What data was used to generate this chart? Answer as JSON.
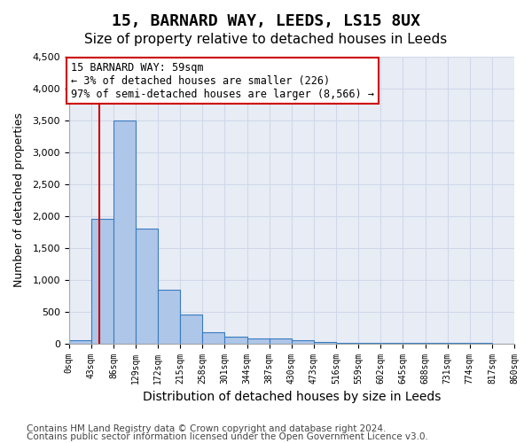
{
  "title1": "15, BARNARD WAY, LEEDS, LS15 8UX",
  "title2": "Size of property relative to detached houses in Leeds",
  "xlabel": "Distribution of detached houses by size in Leeds",
  "ylabel": "Number of detached properties",
  "bar_left_edges": [
    0,
    43,
    86,
    129,
    172,
    215,
    258,
    301,
    344,
    387,
    430,
    473,
    516,
    559,
    602,
    645,
    688,
    731,
    774,
    817
  ],
  "bar_heights": [
    50,
    1950,
    3500,
    1800,
    850,
    450,
    175,
    105,
    80,
    75,
    50,
    20,
    12,
    8,
    6,
    5,
    5,
    4,
    3,
    2
  ],
  "bin_width": 43,
  "tick_labels": [
    "0sqm",
    "43sqm",
    "86sqm",
    "129sqm",
    "172sqm",
    "215sqm",
    "258sqm",
    "301sqm",
    "344sqm",
    "387sqm",
    "430sqm",
    "473sqm",
    "516sqm",
    "559sqm",
    "602sqm",
    "645sqm",
    "688sqm",
    "731sqm",
    "774sqm",
    "817sqm",
    "860sqm"
  ],
  "bar_color": "#aec6e8",
  "bar_edge_color": "#3a7bbf",
  "vline_x": 59,
  "vline_color": "#cc0000",
  "annotation_text": "15 BARNARD WAY: 59sqm\n← 3% of detached houses are smaller (226)\n97% of semi-detached houses are larger (8,566) →",
  "annotation_box_color": "#cc0000",
  "ylim": [
    0,
    4500
  ],
  "yticks": [
    0,
    500,
    1000,
    1500,
    2000,
    2500,
    3000,
    3500,
    4000,
    4500
  ],
  "grid_color": "#d0d8e8",
  "background_color": "#e8edf5",
  "footer1": "Contains HM Land Registry data © Crown copyright and database right 2024.",
  "footer2": "Contains public sector information licensed under the Open Government Licence v3.0.",
  "title1_fontsize": 13,
  "title2_fontsize": 11,
  "xlabel_fontsize": 10,
  "ylabel_fontsize": 9,
  "annotation_fontsize": 8.5,
  "footer_fontsize": 7.5
}
